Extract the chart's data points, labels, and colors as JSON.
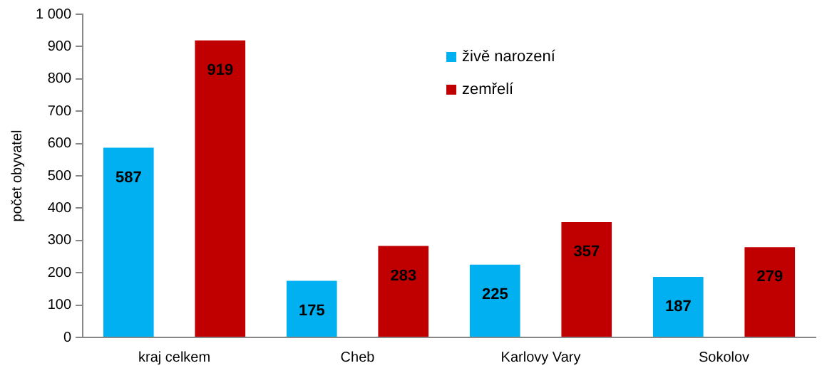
{
  "chart_data": {
    "type": "bar",
    "ylabel": "počet obyvatel",
    "categories": [
      "kraj celkem",
      "Cheb",
      "Karlovy Vary",
      "Sokolov"
    ],
    "series": [
      {
        "name": "živě narození",
        "color": "#00b0f0",
        "values": [
          587,
          175,
          225,
          187
        ]
      },
      {
        "name": "zemřelí",
        "color": "#c00000",
        "values": [
          919,
          283,
          357,
          279
        ]
      }
    ],
    "ylim": [
      0,
      1000
    ],
    "yticks": [
      0,
      100,
      200,
      300,
      400,
      500,
      600,
      700,
      800,
      900,
      {
        "value": 1000,
        "label": "1 000"
      }
    ],
    "grid": false,
    "legend": "top right",
    "data_labels": true
  }
}
